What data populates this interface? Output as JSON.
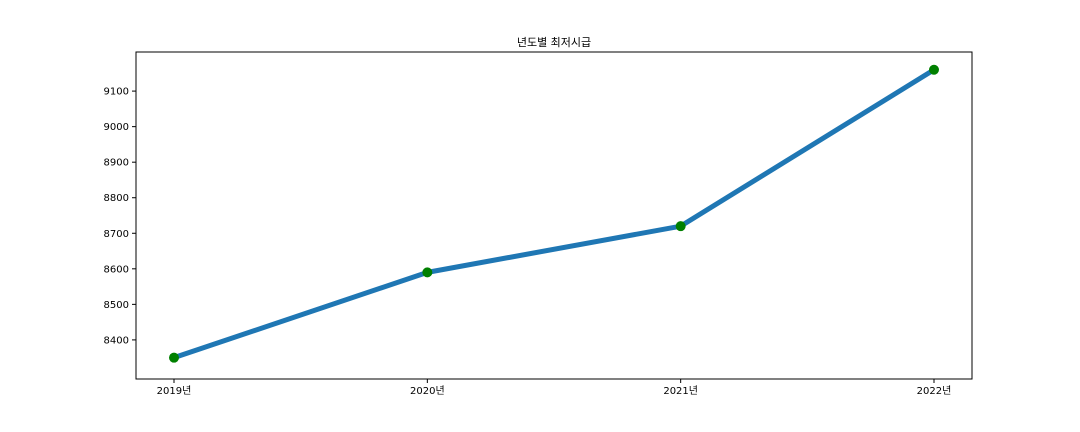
{
  "chart_data": {
    "type": "line",
    "title": "년도별 최저시급",
    "xlabel": "",
    "ylabel": "",
    "categories": [
      "2019년",
      "2020년",
      "2021년",
      "2022년"
    ],
    "series": [
      {
        "values": [
          8350,
          8590,
          8720,
          9160
        ]
      }
    ],
    "ylim": [
      8290,
      9210
    ],
    "yticks": [
      8400,
      8500,
      8600,
      8700,
      8800,
      8900,
      9000,
      9100
    ],
    "ytick_labels": [
      "8400",
      "8500",
      "8600",
      "8700",
      "8800",
      "8900",
      "9000",
      "9100"
    ],
    "grid": false,
    "legend": "none",
    "colors": {
      "line": "#1f77b4",
      "marker": "#008000"
    }
  }
}
